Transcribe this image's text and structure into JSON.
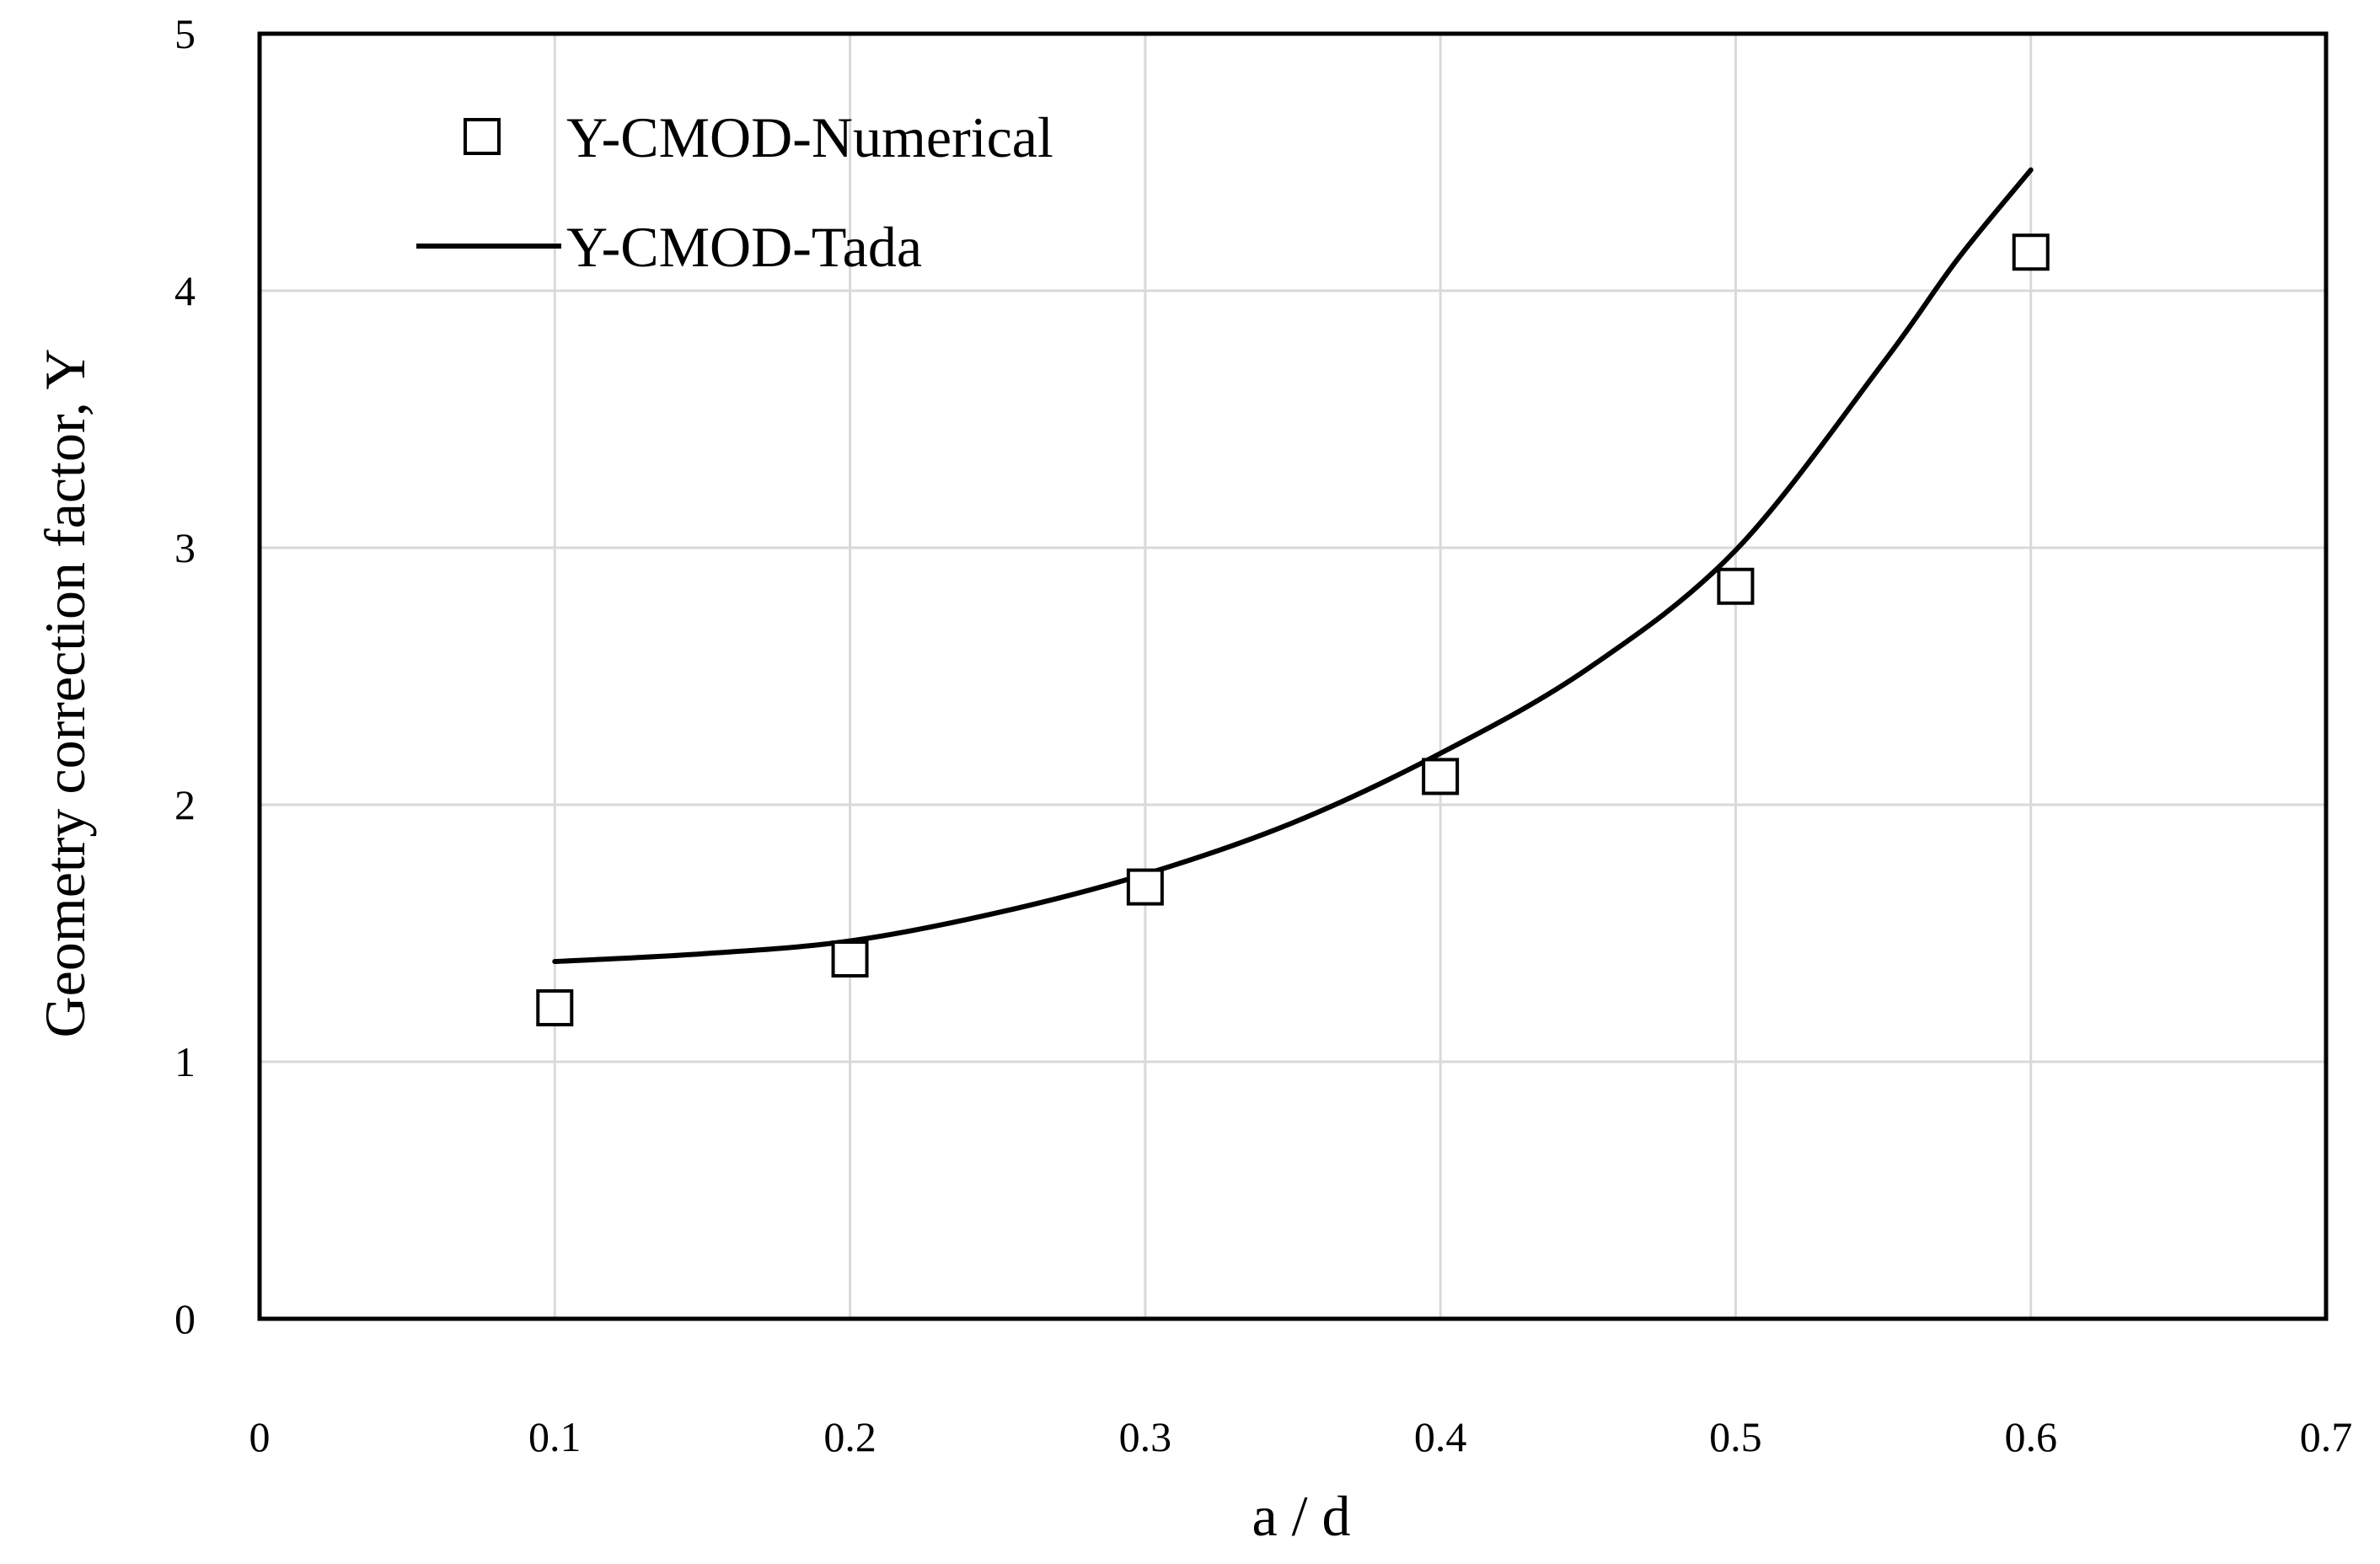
{
  "chart_data": {
    "type": "scatter",
    "title": "",
    "xlabel": "a / d",
    "ylabel": "Geometry correction factor, Y",
    "xlim": [
      0,
      0.7
    ],
    "ylim": [
      0,
      5
    ],
    "xticks": [
      0,
      0.1,
      0.2,
      0.3,
      0.4,
      0.5,
      0.6,
      0.7
    ],
    "yticks": [
      0,
      1,
      2,
      3,
      4,
      5
    ],
    "x_tick_labels": [
      "0",
      "0.1",
      "0.2",
      "0.3",
      "0.4",
      "0.5",
      "0.6",
      "0.7"
    ],
    "y_tick_labels": [
      "0",
      "1",
      "2",
      "3",
      "4",
      "5"
    ],
    "grid": true,
    "legend_position": "top-left",
    "series": [
      {
        "name": "Y-CMOD-Numerical",
        "style": "square-marker",
        "x": [
          0.1,
          0.2,
          0.3,
          0.4,
          0.5,
          0.6
        ],
        "y": [
          1.21,
          1.4,
          1.68,
          2.11,
          2.85,
          4.15
        ]
      },
      {
        "name": "Y-CMOD-Tada",
        "style": "line",
        "x": [
          0.1,
          0.15,
          0.2,
          0.25,
          0.3,
          0.35,
          0.4,
          0.45,
          0.5,
          0.55,
          0.575,
          0.6
        ],
        "y": [
          1.39,
          1.42,
          1.47,
          1.58,
          1.73,
          1.93,
          2.2,
          2.53,
          2.99,
          3.72,
          4.12,
          4.47
        ]
      }
    ]
  },
  "colors": {
    "axis": "#000000",
    "grid": "#d9d9d9",
    "series": "#000000",
    "background": "#ffffff"
  }
}
